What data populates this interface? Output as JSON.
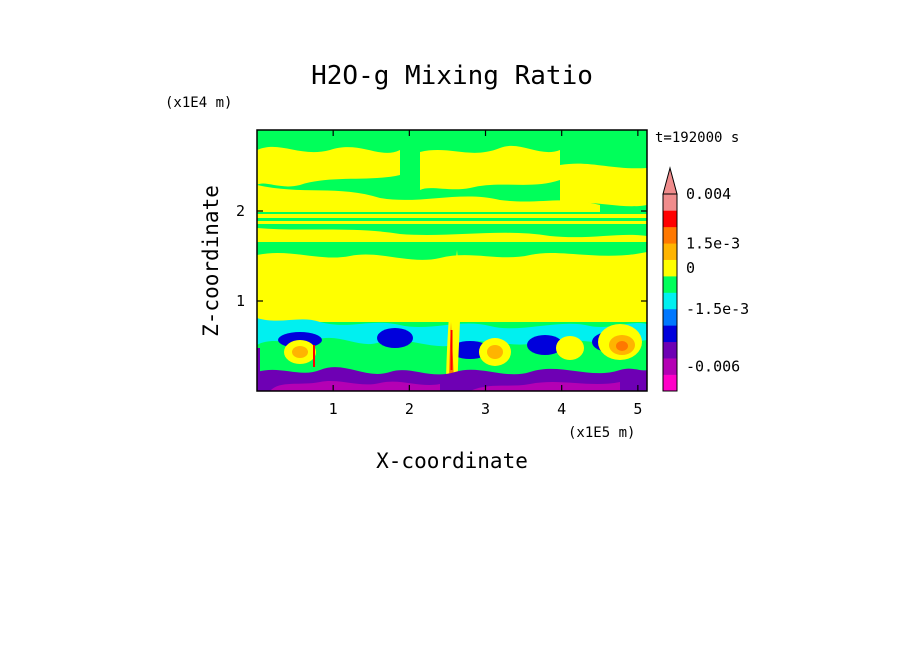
{
  "chart_data": {
    "type": "heatmap",
    "title": "H2O-g Mixing Ratio",
    "xlabel": "X-coordinate",
    "ylabel": "Z-coordinate",
    "x_scale_label": "(x1E5 m)",
    "y_scale_label": "(x1E4 m)",
    "time_label": "t=192000 s",
    "xlim": [
      0,
      5.12
    ],
    "ylim": [
      0,
      2.9
    ],
    "x_ticks": [
      "1",
      "2",
      "3",
      "4",
      "5"
    ],
    "x_tick_values": [
      1,
      2,
      3,
      4,
      5
    ],
    "y_ticks": [
      "1",
      "2"
    ],
    "y_tick_values": [
      1,
      2
    ],
    "colorbar": {
      "levels": [
        {
          "color": "#ff00c8",
          "level": 1
        },
        {
          "color": "#b400b4",
          "level": 2
        },
        {
          "color": "#6e00b4",
          "level": 3
        },
        {
          "color": "#0000dc",
          "level": 4
        },
        {
          "color": "#0078ff",
          "level": 5
        },
        {
          "color": "#00f0f0",
          "level": 6
        },
        {
          "color": "#00ff5a",
          "level": 7
        },
        {
          "color": "#ffff00",
          "level": 8
        },
        {
          "color": "#ffb400",
          "level": 9
        },
        {
          "color": "#ff7800",
          "level": 10
        },
        {
          "color": "#ff0000",
          "level": 11
        },
        {
          "color": "#f08c8c",
          "level": 12
        }
      ],
      "labels": [
        {
          "text": "0.004",
          "boundary": 12
        },
        {
          "text": "1.5e-3",
          "boundary": 9
        },
        {
          "text": "0",
          "boundary": 7.5
        },
        {
          "text": "-1.5e-3",
          "boundary": 5
        },
        {
          "text": "-0.006",
          "boundary": 1.5
        }
      ]
    },
    "fields": {
      "upper_band_color": "#00ff5a",
      "mid_band_color": "#ffff00",
      "boundary_layer_colors": [
        "#00f0f0",
        "#0000dc",
        "#6e00b4",
        "#b400b4"
      ],
      "anomaly_colors": [
        "#ffb400",
        "#ff7800",
        "#ff0000"
      ]
    }
  }
}
